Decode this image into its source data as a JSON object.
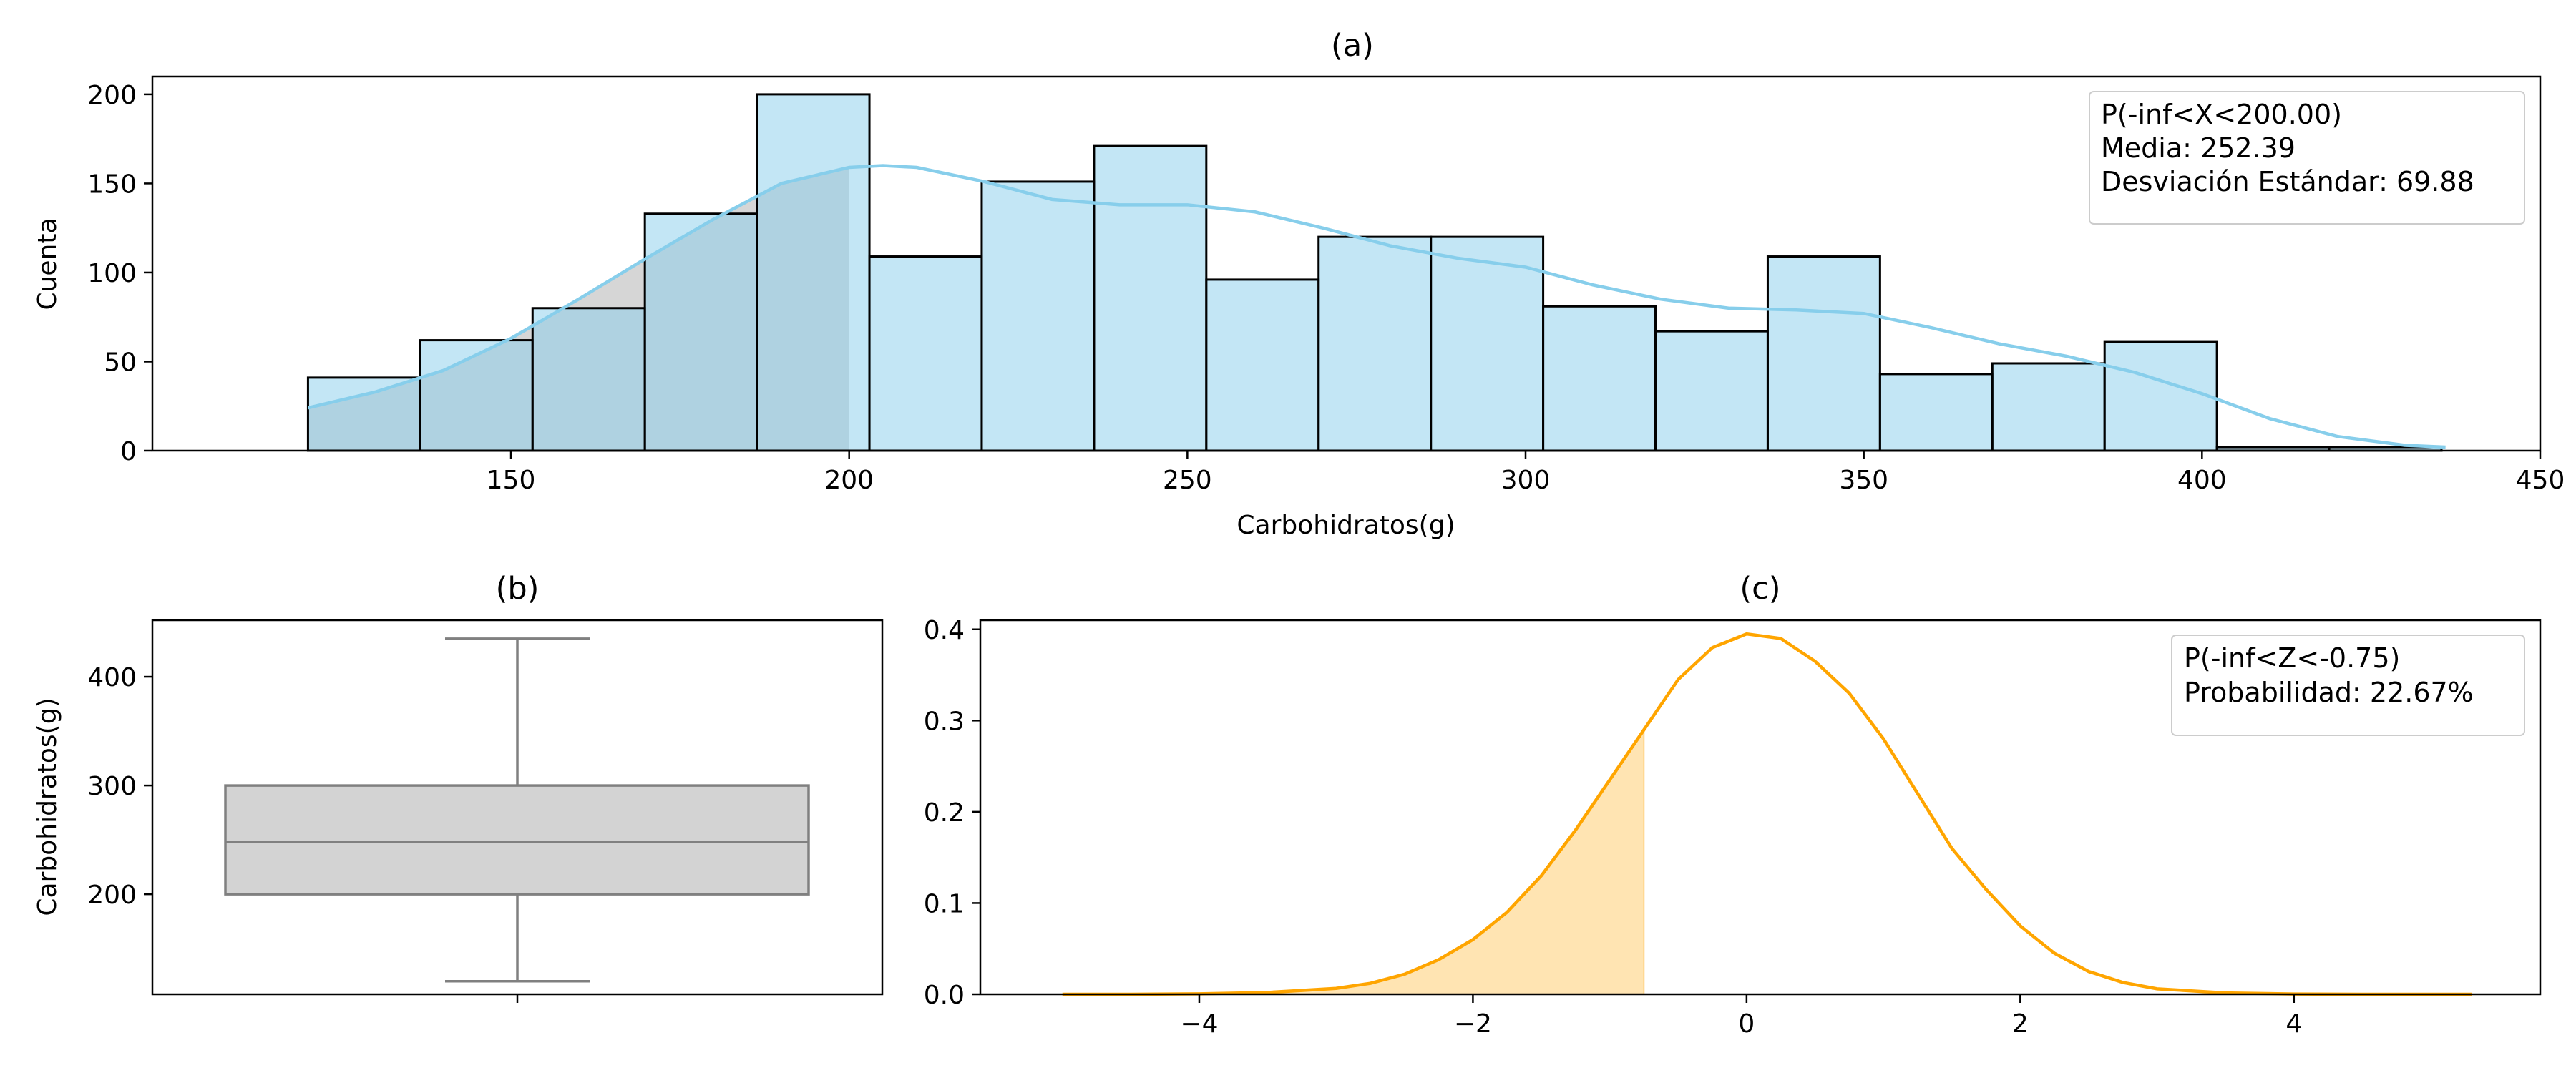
{
  "chart_data": [
    {
      "panel": "a",
      "type": "bar",
      "subtype": "histogram-with-kde",
      "title": "(a)",
      "xlabel": "Carbohidratos(g)",
      "ylabel": "Cuenta",
      "xlim": [
        97,
        450
      ],
      "ylim": [
        0,
        210
      ],
      "xticks": [
        150,
        200,
        250,
        300,
        350,
        400,
        450
      ],
      "yticks": [
        0,
        50,
        100,
        150,
        200
      ],
      "bin_edges": [
        120.0,
        136.6,
        153.2,
        169.8,
        186.4,
        203.0,
        219.6,
        236.2,
        252.8,
        269.4,
        286.0,
        302.6,
        319.2,
        335.8,
        352.4,
        369.0,
        385.6,
        402.2,
        418.8,
        435.4
      ],
      "counts": [
        41,
        62,
        80,
        133,
        200,
        109,
        151,
        171,
        96,
        120,
        120,
        81,
        67,
        109,
        43,
        49,
        61,
        2,
        2
      ],
      "kde": {
        "x": [
          120,
          130,
          140,
          150,
          160,
          170,
          180,
          190,
          200,
          205,
          210,
          220,
          230,
          240,
          250,
          260,
          270,
          280,
          290,
          300,
          310,
          320,
          330,
          340,
          350,
          360,
          370,
          380,
          390,
          400,
          410,
          420,
          430,
          436
        ],
        "y": [
          24,
          33,
          45,
          63,
          85,
          108,
          130,
          150,
          159,
          160,
          159,
          151,
          141,
          138,
          138,
          134,
          125,
          115,
          108,
          103,
          93,
          85,
          80,
          79,
          77,
          69,
          60,
          53,
          44,
          32,
          18,
          8,
          3,
          2
        ]
      },
      "shade_upper": 200,
      "bar_color": "#87ceeb",
      "kde_color": "#87ceeb",
      "shade_color": "#999999",
      "legend": {
        "placement": "top-right",
        "lines": [
          "P(-inf<X<200.00)",
          "Media: 252.39",
          "Desviación Estándar: 69.88"
        ]
      }
    },
    {
      "panel": "b",
      "type": "box",
      "title": "(b)",
      "xlabel": "",
      "ylabel": "Carbohidratos(g)",
      "ylim": [
        108,
        452
      ],
      "yticks": [
        200,
        300,
        400
      ],
      "box": {
        "whisker_low": 120,
        "q1": 200,
        "median": 248,
        "q3": 300,
        "whisker_high": 435
      },
      "box_color": "#d3d3d3",
      "line_color": "#808080"
    },
    {
      "panel": "c",
      "type": "line",
      "subtype": "density-with-shaded-area",
      "title": "(c)",
      "xlabel": "",
      "ylabel": "",
      "xlim": [
        -5.6,
        5.8
      ],
      "ylim": [
        0,
        0.41
      ],
      "xticks": [
        -4,
        -2,
        0,
        2,
        4
      ],
      "xtick_labels": [
        "−4",
        "−2",
        "0",
        "2",
        "4"
      ],
      "yticks": [
        0.0,
        0.1,
        0.2,
        0.3,
        0.4
      ],
      "ytick_labels": [
        "0.0",
        "0.1",
        "0.2",
        "0.3",
        "0.4"
      ],
      "x": [
        -5,
        -4.5,
        -4,
        -3.5,
        -3,
        -2.75,
        -2.5,
        -2.25,
        -2,
        -1.75,
        -1.5,
        -1.25,
        -1,
        -0.75,
        -0.5,
        -0.25,
        0,
        0.25,
        0.5,
        0.75,
        1,
        1.25,
        1.5,
        1.75,
        2,
        2.25,
        2.5,
        2.75,
        3,
        3.5,
        4,
        4.5,
        5,
        5.3
      ],
      "y": [
        0.0,
        0.0,
        0.0005,
        0.002,
        0.0065,
        0.012,
        0.022,
        0.038,
        0.06,
        0.09,
        0.13,
        0.18,
        0.235,
        0.29,
        0.345,
        0.38,
        0.395,
        0.39,
        0.365,
        0.33,
        0.28,
        0.22,
        0.16,
        0.115,
        0.075,
        0.045,
        0.025,
        0.013,
        0.006,
        0.0015,
        0.0003,
        0.0,
        0.0,
        0.0
      ],
      "shade_upper": -0.75,
      "line_color": "#ffa500",
      "shade_color": "#ffa500",
      "legend": {
        "placement": "top-right",
        "lines": [
          "P(-inf<Z<-0.75)",
          "Probabilidad:  22.67%"
        ]
      }
    }
  ]
}
